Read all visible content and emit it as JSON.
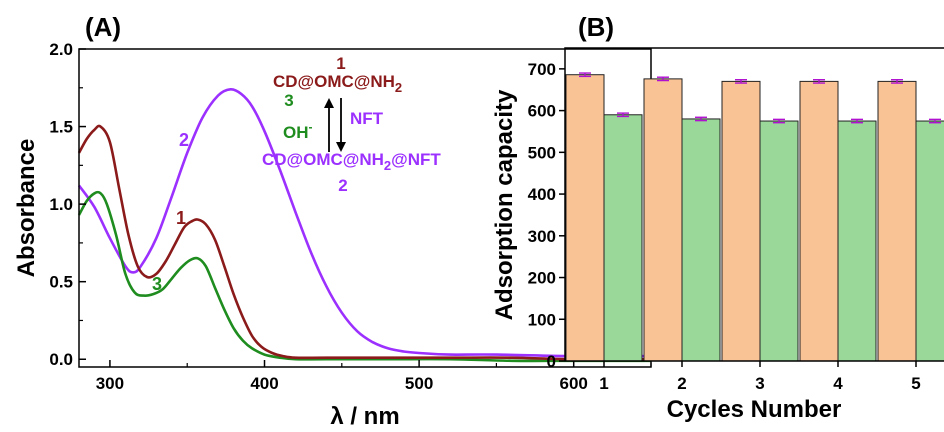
{
  "colors": {
    "curve1": "#8b1a1a",
    "curve2": "#9b30ff",
    "curve3": "#1e8c1e",
    "bar_first": "#f9c396",
    "bar_second": "#9ad89a",
    "errorbar": "#b010d0"
  },
  "chart_data": [
    {
      "type": "line",
      "panel_label": "(A)",
      "xlabel": "λ / nm",
      "ylabel": "Absorbance",
      "xlim": [
        280,
        650
      ],
      "ylim": [
        -0.05,
        2.0
      ],
      "xticks": [
        "300",
        "400",
        "500",
        "600"
      ],
      "yticks": [
        "0.0",
        "0.5",
        "1.0",
        "1.5",
        "2.0"
      ],
      "grid": false,
      "series": [
        {
          "name": "1",
          "color_key": "curve1",
          "x": [
            280,
            285,
            290,
            294,
            300,
            306,
            312,
            318,
            324,
            330,
            336,
            342,
            348,
            353,
            357,
            362,
            368,
            374,
            380,
            386,
            392,
            398,
            405,
            412,
            420,
            440,
            480,
            520,
            560,
            600,
            650
          ],
          "y": [
            1.33,
            1.42,
            1.48,
            1.5,
            1.4,
            1.1,
            0.8,
            0.6,
            0.53,
            0.55,
            0.63,
            0.74,
            0.85,
            0.89,
            0.9,
            0.87,
            0.77,
            0.6,
            0.42,
            0.27,
            0.15,
            0.08,
            0.04,
            0.02,
            0.01,
            0.01,
            0.01,
            0.01,
            0.01,
            0.0,
            0.0
          ]
        },
        {
          "name": "2",
          "color_key": "curve2",
          "x": [
            280,
            290,
            300,
            310,
            315,
            320,
            330,
            340,
            350,
            360,
            370,
            378,
            385,
            392,
            400,
            410,
            420,
            430,
            440,
            450,
            460,
            470,
            480,
            490,
            500,
            520,
            550,
            600,
            650
          ],
          "y": [
            1.12,
            0.98,
            0.78,
            0.6,
            0.56,
            0.6,
            0.78,
            1.05,
            1.33,
            1.56,
            1.7,
            1.74,
            1.71,
            1.63,
            1.47,
            1.22,
            0.95,
            0.69,
            0.47,
            0.3,
            0.18,
            0.11,
            0.07,
            0.05,
            0.04,
            0.03,
            0.03,
            0.02,
            0.02
          ]
        },
        {
          "name": "3",
          "color_key": "curve3",
          "x": [
            280,
            285,
            290,
            294,
            298,
            304,
            310,
            316,
            322,
            328,
            334,
            340,
            346,
            352,
            357,
            362,
            368,
            374,
            380,
            386,
            392,
            400,
            410,
            420,
            440,
            480,
            520,
            560,
            600,
            650
          ],
          "y": [
            0.93,
            1.02,
            1.07,
            1.07,
            1.0,
            0.8,
            0.55,
            0.43,
            0.41,
            0.42,
            0.45,
            0.52,
            0.59,
            0.64,
            0.65,
            0.6,
            0.46,
            0.32,
            0.2,
            0.12,
            0.07,
            0.03,
            0.01,
            0.0,
            0.0,
            0.0,
            0.0,
            -0.01,
            -0.01,
            -0.01
          ]
        }
      ],
      "annotations": {
        "top_number": "1",
        "top_formula": "CD@OMC@NH",
        "top_subscript": "2",
        "left_label": "3",
        "left_text": "OH",
        "left_superscript": "-",
        "right_text": "NFT",
        "bottom_formula_a": "CD@OMC@NH",
        "bottom_subscript": "2",
        "bottom_formula_b": "@NFT",
        "bottom_number": "2"
      },
      "curve_labels": [
        "1",
        "2",
        "3"
      ]
    },
    {
      "type": "bar",
      "panel_label": "(B)",
      "xlabel": "Cycles Number",
      "ylabel": "Adsorption capacity",
      "ylim": [
        0,
        750
      ],
      "yticks": [
        "0",
        "100",
        "200",
        "300",
        "400",
        "500",
        "600",
        "700"
      ],
      "categories": [
        "1",
        "2",
        "3",
        "4",
        "5"
      ],
      "grid": false,
      "series": [
        {
          "color_key": "bar_first",
          "values": [
            686,
            676,
            670,
            670,
            670
          ],
          "errors": [
            4,
            4,
            4,
            4,
            4
          ]
        },
        {
          "color_key": "bar_second",
          "values": [
            590,
            580,
            575,
            575,
            575
          ],
          "errors": [
            4,
            4,
            4,
            4,
            4
          ]
        }
      ]
    }
  ]
}
